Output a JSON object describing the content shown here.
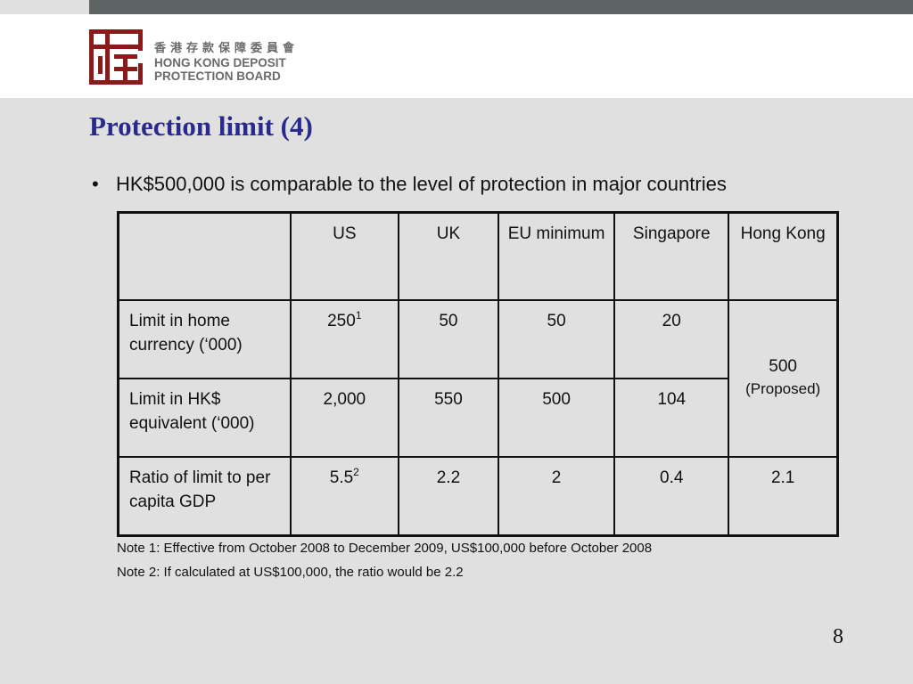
{
  "header": {
    "logo_cn": "香港存款保障委員會",
    "logo_en_line1": "HONG KONG DEPOSIT",
    "logo_en_line2": "PROTECTION BOARD",
    "brand_color": "#8b1a1a"
  },
  "title": "Protection limit (4)",
  "bullet": "HK$500,000 is comparable to the level of protection in major countries",
  "table": {
    "columns": [
      "",
      "US",
      "UK",
      "EU minimum",
      "Singapore",
      "Hong Kong"
    ],
    "rows": [
      {
        "label": "Limit in home currency (‘000)",
        "us": "250",
        "us_sup": "1",
        "uk": "50",
        "eu": "50",
        "sg": "20"
      },
      {
        "label": "Limit in HK$ equivalent (‘000)",
        "us": "2,000",
        "uk": "550",
        "eu": "500",
        "sg": "104"
      },
      {
        "label": "Ratio of limit to per capita GDP",
        "us": "5.5",
        "us_sup": "2",
        "uk": "2.2",
        "eu": "2",
        "sg": "0.4",
        "hk": "2.1"
      }
    ],
    "hk_merged_value": "500",
    "hk_merged_note": "(Proposed)"
  },
  "notes": [
    "Note 1: Effective from October 2008 to December 2009, US$100,000 before October 2008",
    "Note 2: If calculated at US$100,000, the ratio would be 2.2"
  ],
  "page_number": "8"
}
